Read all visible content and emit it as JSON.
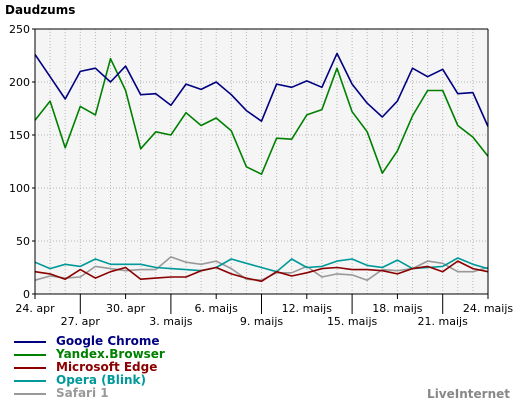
{
  "chart_data": {
    "type": "line",
    "title": "Daudzums",
    "ylim": [
      0,
      250
    ],
    "yticks": [
      0,
      50,
      100,
      150,
      200,
      250
    ],
    "grid": true,
    "x_tick_labels": [
      {
        "index": 0,
        "label": "24. apr"
      },
      {
        "index": 3,
        "label": "27. apr"
      },
      {
        "index": 6,
        "label": "30. apr"
      },
      {
        "index": 9,
        "label": "3. maijs"
      },
      {
        "index": 12,
        "label": "6. maijs"
      },
      {
        "index": 15,
        "label": "9. maijs"
      },
      {
        "index": 18,
        "label": "12. maijs"
      },
      {
        "index": 21,
        "label": "15. maijs"
      },
      {
        "index": 24,
        "label": "18. maijs"
      },
      {
        "index": 27,
        "label": "21. maijs"
      },
      {
        "index": 30,
        "label": "24. maijs"
      }
    ],
    "series": [
      {
        "name": "Google Chrome",
        "color": "#000080",
        "values": [
          226,
          205,
          184,
          210,
          213,
          200,
          215,
          188,
          189,
          178,
          198,
          193,
          200,
          188,
          173,
          163,
          198,
          195,
          201,
          195,
          227,
          198,
          180,
          167,
          182,
          213,
          205,
          212,
          189,
          190,
          158
        ]
      },
      {
        "name": "Yandex.Browser",
        "color": "#008000",
        "values": [
          164,
          182,
          138,
          177,
          169,
          222,
          192,
          137,
          153,
          150,
          171,
          159,
          166,
          154,
          120,
          113,
          147,
          146,
          169,
          174,
          213,
          172,
          153,
          114,
          135,
          168,
          192,
          192,
          159,
          148,
          130
        ]
      },
      {
        "name": "Microsoft Edge",
        "color": "#8b0000",
        "values": [
          21,
          19,
          14,
          23,
          15,
          21,
          25,
          14,
          15,
          16,
          16,
          22,
          25,
          19,
          15,
          12,
          21,
          17,
          20,
          24,
          25,
          23,
          23,
          22,
          19,
          24,
          26,
          21,
          31,
          24,
          21
        ]
      },
      {
        "name": "Opera (Blink)",
        "color": "#009999",
        "values": [
          30,
          24,
          28,
          26,
          33,
          28,
          28,
          28,
          25,
          24,
          23,
          22,
          25,
          33,
          29,
          25,
          21,
          33,
          25,
          26,
          31,
          33,
          27,
          25,
          32,
          24,
          25,
          26,
          34,
          28,
          24
        ]
      },
      {
        "name": "Safari 1",
        "color": "#999999",
        "values": [
          13,
          17,
          15,
          16,
          26,
          24,
          22,
          23,
          23,
          35,
          30,
          28,
          31,
          24,
          14,
          13,
          20,
          20,
          26,
          16,
          19,
          18,
          13,
          23,
          22,
          24,
          31,
          29,
          21,
          21,
          25
        ]
      }
    ]
  },
  "credit": "LiveInternet"
}
